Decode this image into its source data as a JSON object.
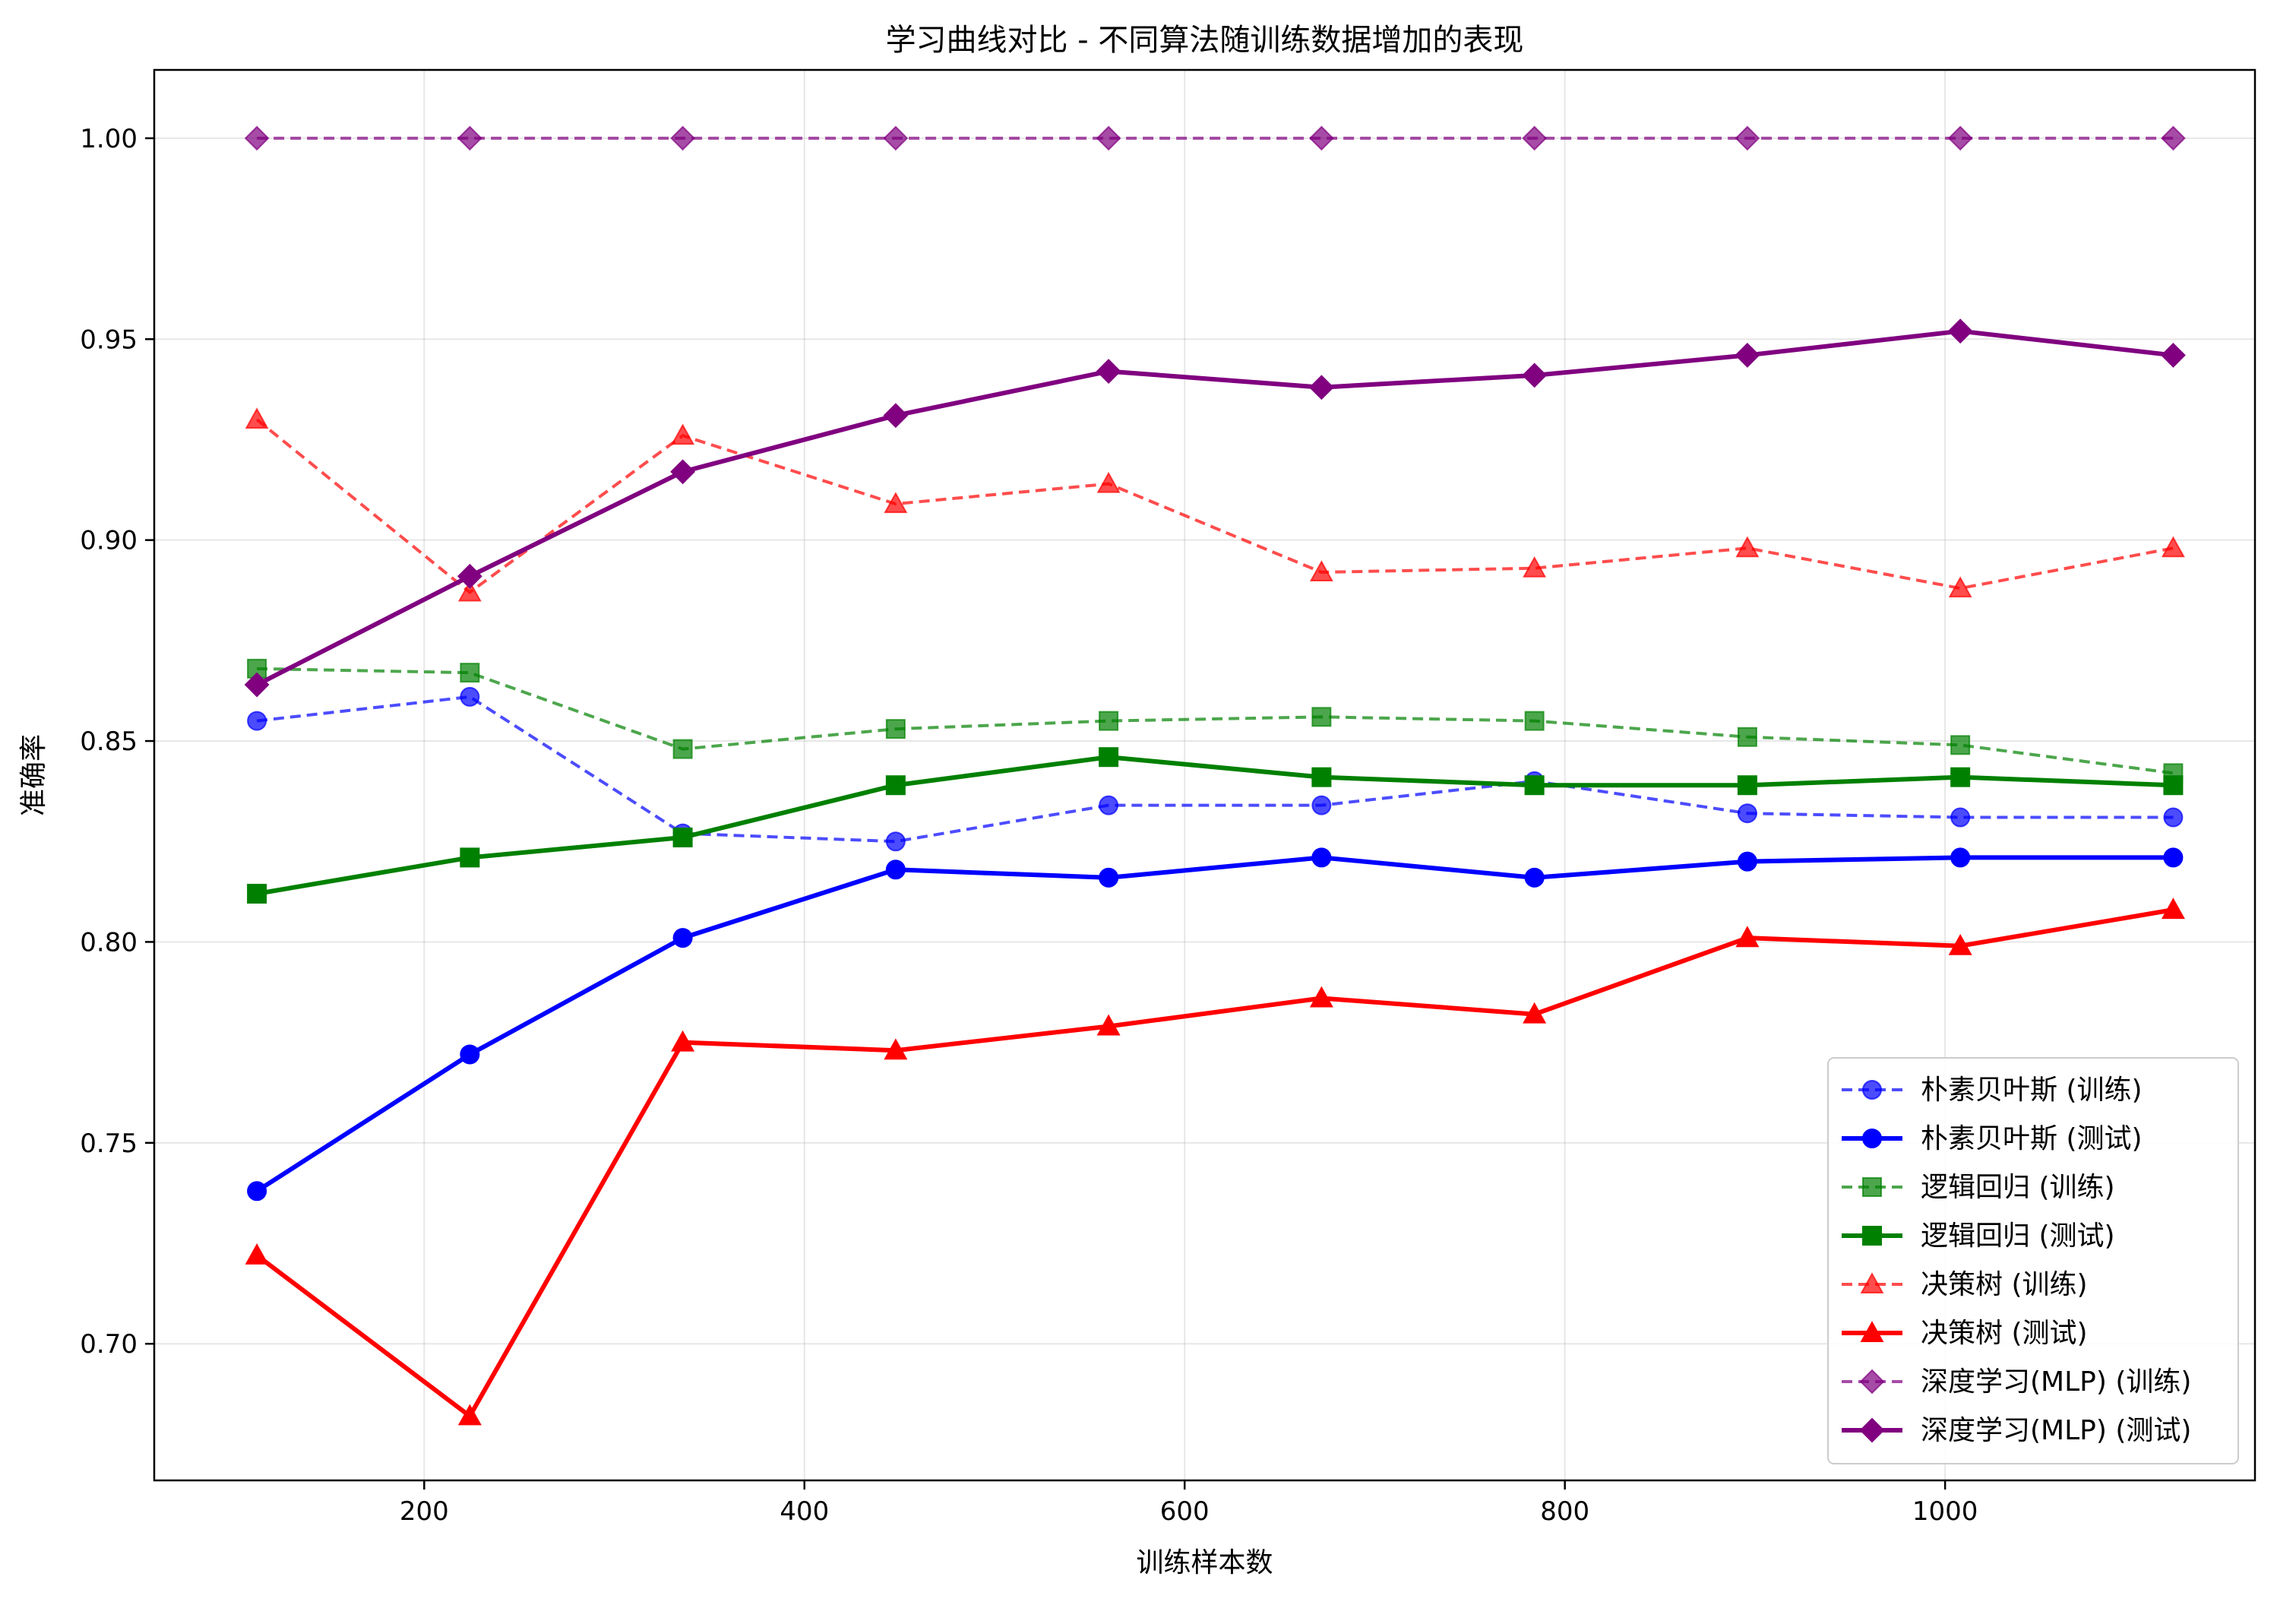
{
  "chart_data": {
    "type": "line",
    "title": "学习曲线对比 - 不同算法随训练数据增加的表现",
    "xlabel": "训练样本数",
    "ylabel": "准确率",
    "xlim": [
      58,
      1163
    ],
    "ylim": [
      0.666,
      1.017
    ],
    "xticks": [
      200,
      400,
      600,
      800,
      1000
    ],
    "yticks": [
      0.7,
      0.75,
      0.8,
      0.85,
      0.9,
      0.95,
      1.0
    ],
    "xtick_labels": [
      "200",
      "400",
      "600",
      "800",
      "1000"
    ],
    "ytick_labels": [
      "0.70",
      "0.75",
      "0.80",
      "0.85",
      "0.90",
      "0.95",
      "1.00"
    ],
    "grid": true,
    "legend_position": "lower-right",
    "x": [
      112,
      224,
      336,
      448,
      560,
      672,
      784,
      896,
      1008,
      1120
    ],
    "series": [
      {
        "name": "朴素贝叶斯 (训练)",
        "color": "#0000ff",
        "dash": true,
        "marker": "circle",
        "values": [
          0.855,
          0.861,
          0.827,
          0.825,
          0.834,
          0.834,
          0.84,
          0.832,
          0.831,
          0.831
        ]
      },
      {
        "name": "朴素贝叶斯 (测试)",
        "color": "#0000ff",
        "dash": false,
        "marker": "circle",
        "values": [
          0.738,
          0.772,
          0.801,
          0.818,
          0.816,
          0.821,
          0.816,
          0.82,
          0.821,
          0.821
        ]
      },
      {
        "name": "逻辑回归 (训练)",
        "color": "#008000",
        "dash": true,
        "marker": "square",
        "values": [
          0.868,
          0.867,
          0.848,
          0.853,
          0.855,
          0.856,
          0.855,
          0.851,
          0.849,
          0.842
        ]
      },
      {
        "name": "逻辑回归 (测试)",
        "color": "#008000",
        "dash": false,
        "marker": "square",
        "values": [
          0.812,
          0.821,
          0.826,
          0.839,
          0.846,
          0.841,
          0.839,
          0.839,
          0.841,
          0.839
        ]
      },
      {
        "name": "决策树 (训练)",
        "color": "#ff0000",
        "dash": true,
        "marker": "triangle",
        "values": [
          0.93,
          0.887,
          0.926,
          0.909,
          0.914,
          0.892,
          0.893,
          0.898,
          0.888,
          0.898
        ]
      },
      {
        "name": "决策树 (测试)",
        "color": "#ff0000",
        "dash": false,
        "marker": "triangle",
        "values": [
          0.722,
          0.682,
          0.775,
          0.773,
          0.779,
          0.786,
          0.782,
          0.801,
          0.799,
          0.808
        ]
      },
      {
        "name": "深度学习(MLP) (训练)",
        "color": "#800080",
        "dash": true,
        "marker": "diamond",
        "values": [
          1.0,
          1.0,
          1.0,
          1.0,
          1.0,
          1.0,
          1.0,
          1.0,
          1.0,
          1.0
        ]
      },
      {
        "name": "深度学习(MLP) (测试)",
        "color": "#800080",
        "dash": false,
        "marker": "diamond",
        "values": [
          0.864,
          0.891,
          0.917,
          0.931,
          0.942,
          0.938,
          0.941,
          0.946,
          0.952,
          0.946
        ]
      }
    ]
  }
}
